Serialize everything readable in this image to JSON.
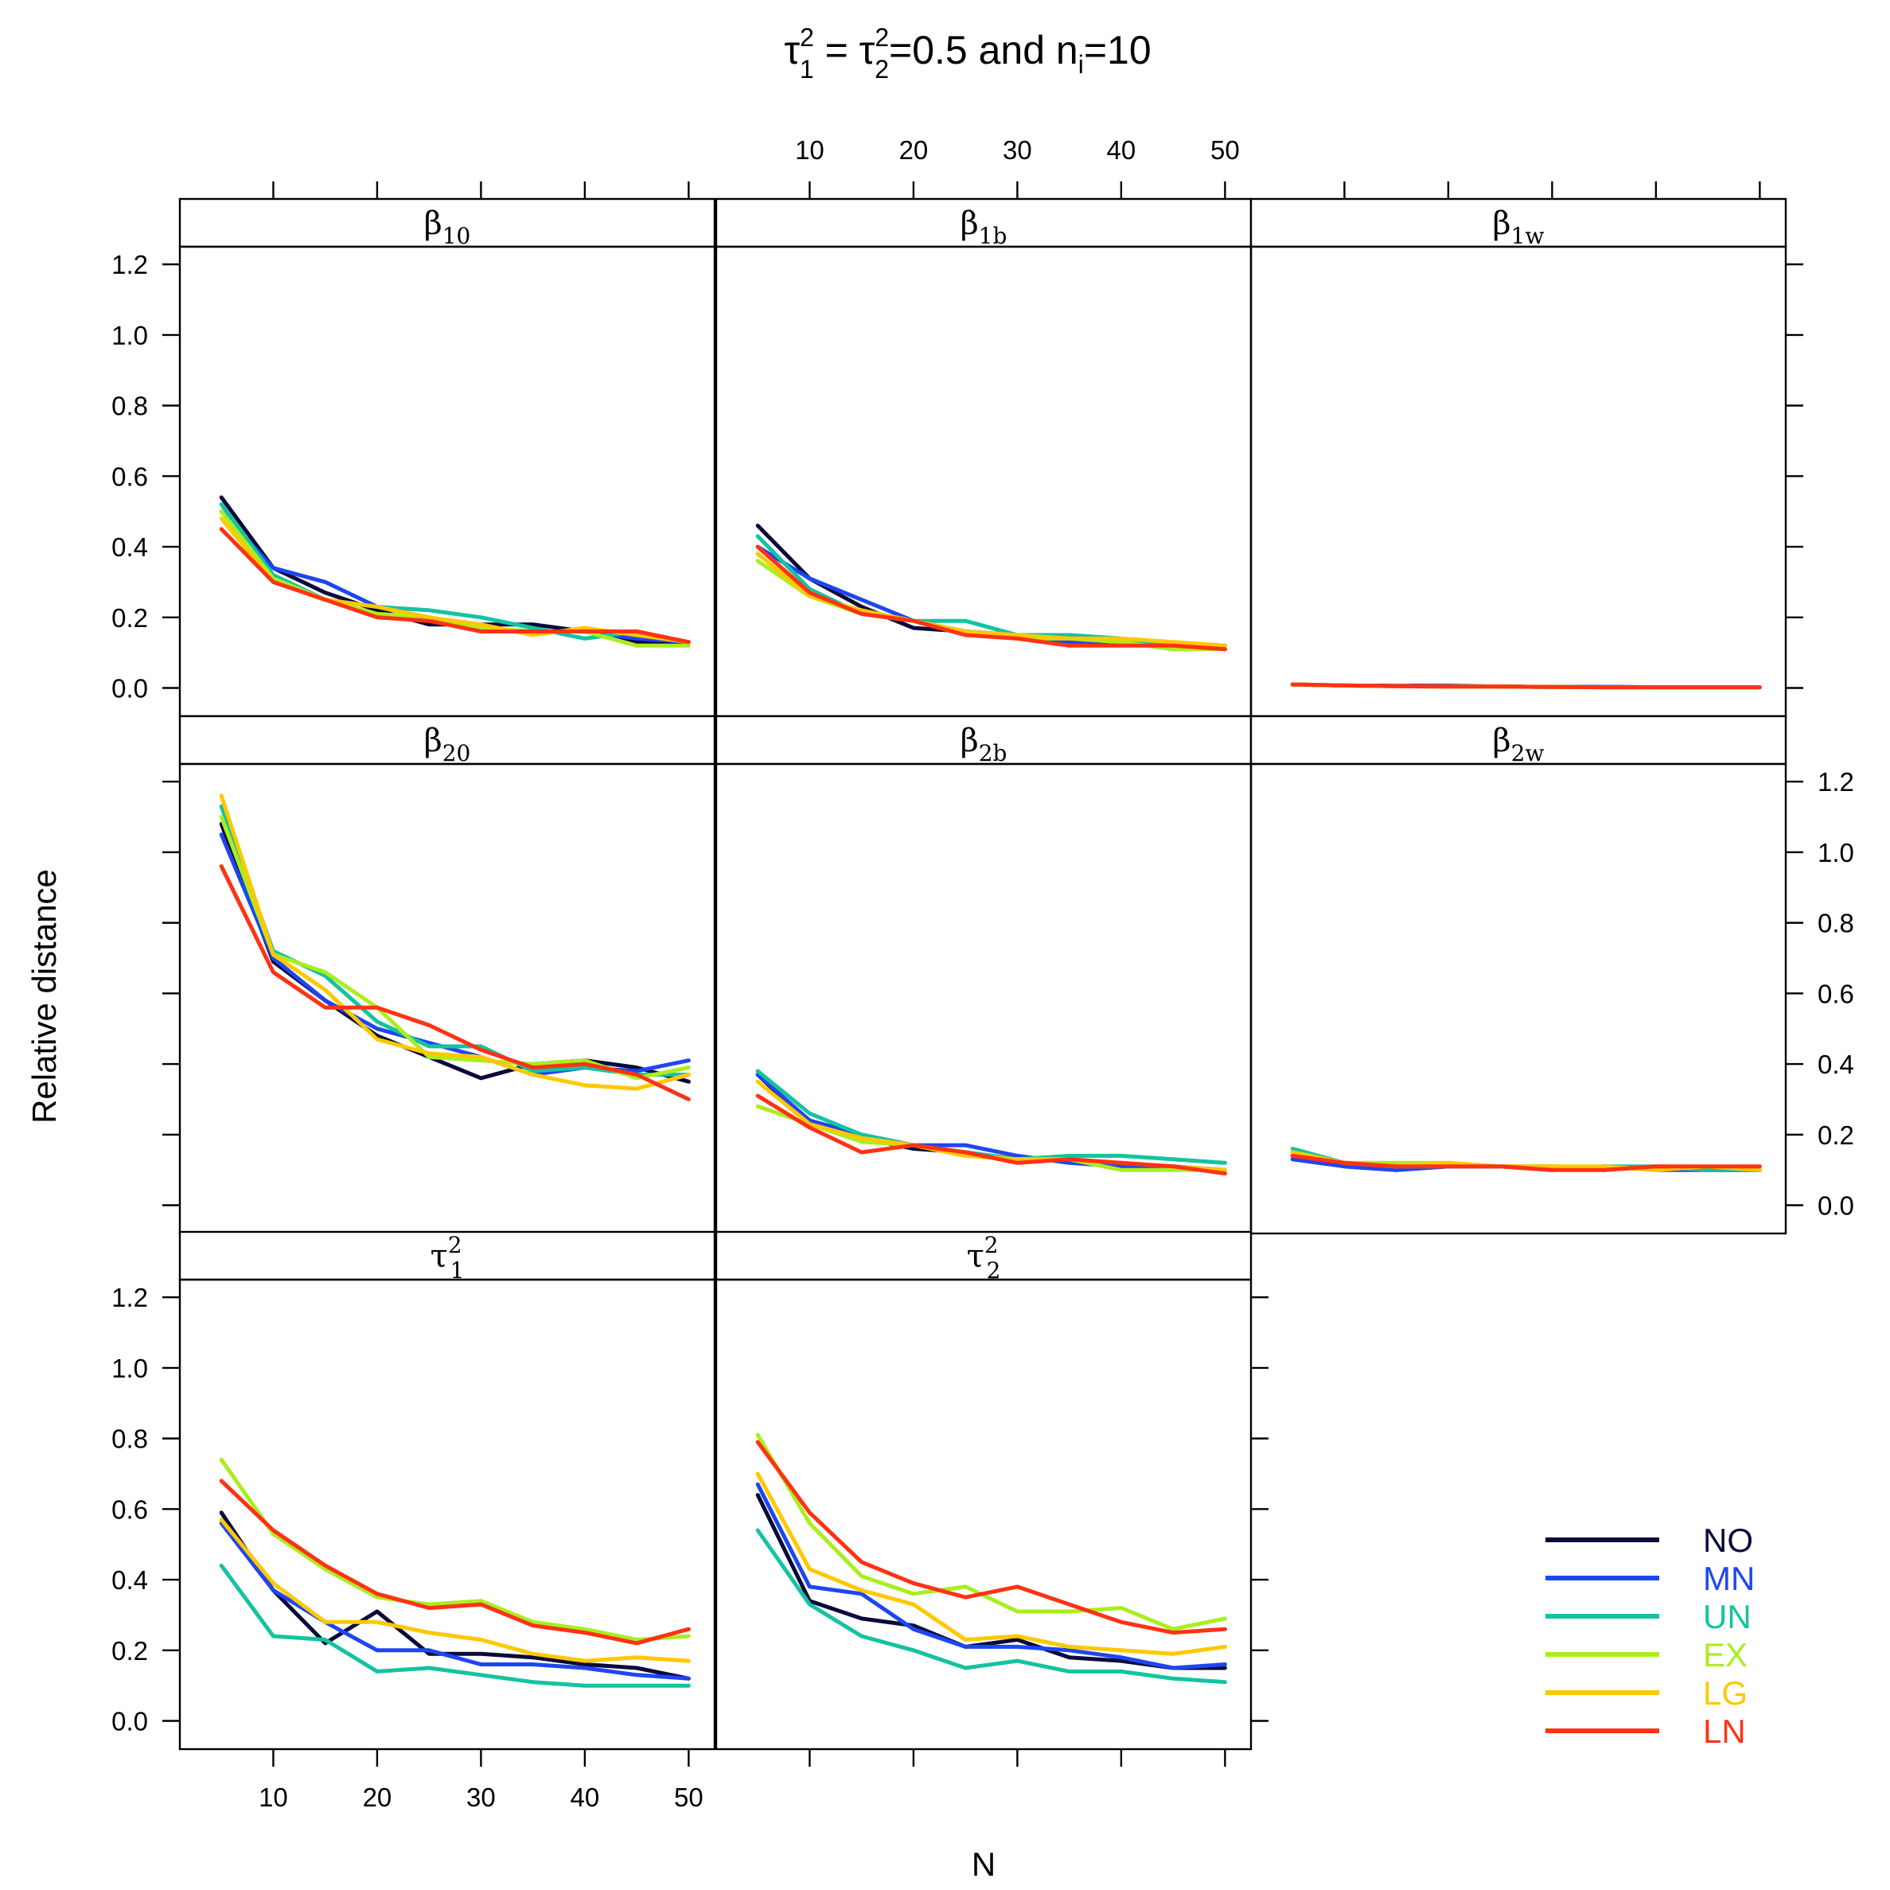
{
  "chart_data": {
    "type": "line",
    "title": {
      "tau1": "τ",
      "sup": "2",
      "sub1": "1",
      "eq": " = ",
      "tau2": "τ",
      "sub2": "2",
      "rest": "=0.5 and n",
      "subi": "i",
      "tail": "=10"
    },
    "xlabel": "N",
    "ylabel": "Relative distance",
    "x": [
      5,
      10,
      15,
      20,
      25,
      30,
      35,
      40,
      45,
      50
    ],
    "xticks": [
      "10",
      "20",
      "30",
      "40",
      "50"
    ],
    "yticks": [
      "0.0",
      "0.2",
      "0.4",
      "0.6",
      "0.8",
      "1.0",
      "1.2"
    ],
    "xlim": [
      1,
      52.5
    ],
    "ylim": [
      -0.08,
      1.25
    ],
    "series_names": [
      "NO",
      "MN",
      "UN",
      "EX",
      "LG",
      "LN"
    ],
    "colors": {
      "NO": "#0a0a3c",
      "MN": "#1e46f0",
      "UN": "#14c3a0",
      "EX": "#aaee1e",
      "LG": "#ffc800",
      "LN": "#ff3214"
    },
    "panels": [
      {
        "id": "b10",
        "greek": "β",
        "sub": "10",
        "sup": "",
        "series": {
          "NO": [
            0.54,
            0.34,
            0.27,
            0.22,
            0.18,
            0.18,
            0.18,
            0.16,
            0.13,
            0.13
          ],
          "MN": [
            0.5,
            0.34,
            0.3,
            0.23,
            0.2,
            0.17,
            0.16,
            0.16,
            0.14,
            0.13
          ],
          "UN": [
            0.52,
            0.32,
            0.25,
            0.23,
            0.22,
            0.2,
            0.17,
            0.14,
            0.16,
            0.13
          ],
          "EX": [
            0.5,
            0.31,
            0.25,
            0.21,
            0.2,
            0.17,
            0.16,
            0.16,
            0.12,
            0.12
          ],
          "LG": [
            0.48,
            0.3,
            0.25,
            0.23,
            0.2,
            0.18,
            0.15,
            0.17,
            0.15,
            0.13
          ],
          "LN": [
            0.45,
            0.3,
            0.25,
            0.2,
            0.19,
            0.16,
            0.16,
            0.16,
            0.16,
            0.13
          ]
        }
      },
      {
        "id": "b1b",
        "greek": "β",
        "sub": "1b",
        "sup": "",
        "series": {
          "NO": [
            0.46,
            0.31,
            0.23,
            0.17,
            0.16,
            0.15,
            0.15,
            0.13,
            0.11,
            0.12
          ],
          "MN": [
            0.4,
            0.31,
            0.25,
            0.19,
            0.16,
            0.15,
            0.13,
            0.13,
            0.12,
            0.11
          ],
          "UN": [
            0.43,
            0.28,
            0.21,
            0.19,
            0.19,
            0.15,
            0.15,
            0.14,
            0.12,
            0.12
          ],
          "EX": [
            0.36,
            0.26,
            0.21,
            0.19,
            0.15,
            0.14,
            0.14,
            0.13,
            0.11,
            0.11
          ],
          "LG": [
            0.38,
            0.26,
            0.22,
            0.19,
            0.16,
            0.15,
            0.14,
            0.14,
            0.13,
            0.12
          ],
          "LN": [
            0.4,
            0.27,
            0.21,
            0.19,
            0.15,
            0.14,
            0.12,
            0.12,
            0.12,
            0.11
          ]
        }
      },
      {
        "id": "b1w",
        "greek": "β",
        "sub": "1w",
        "sup": "",
        "series": {
          "NO": [
            0.01,
            0.007,
            0.006,
            0.006,
            0.004,
            0.003,
            0.003,
            0.002,
            0.002,
            0.002
          ],
          "MN": [
            0.01,
            0.007,
            0.005,
            0.005,
            0.004,
            0.003,
            0.003,
            0.002,
            0.002,
            0.002
          ],
          "UN": [
            0.01,
            0.007,
            0.005,
            0.004,
            0.004,
            0.003,
            0.002,
            0.002,
            0.002,
            0.002
          ],
          "EX": [
            0.01,
            0.007,
            0.005,
            0.004,
            0.004,
            0.003,
            0.002,
            0.002,
            0.002,
            0.002
          ],
          "LG": [
            0.01,
            0.007,
            0.005,
            0.004,
            0.004,
            0.003,
            0.002,
            0.002,
            0.002,
            0.002
          ],
          "LN": [
            0.01,
            0.007,
            0.005,
            0.004,
            0.004,
            0.003,
            0.002,
            0.002,
            0.002,
            0.002
          ]
        }
      },
      {
        "id": "b20",
        "greek": "β",
        "sub": "20",
        "sup": "",
        "series": {
          "NO": [
            1.08,
            0.69,
            0.58,
            0.48,
            0.42,
            0.36,
            0.4,
            0.41,
            0.39,
            0.35
          ],
          "MN": [
            1.05,
            0.7,
            0.58,
            0.5,
            0.46,
            0.42,
            0.37,
            0.39,
            0.38,
            0.41
          ],
          "UN": [
            1.13,
            0.72,
            0.65,
            0.52,
            0.45,
            0.45,
            0.38,
            0.39,
            0.37,
            0.37
          ],
          "EX": [
            1.1,
            0.71,
            0.66,
            0.56,
            0.42,
            0.41,
            0.4,
            0.41,
            0.36,
            0.39
          ],
          "LG": [
            1.16,
            0.71,
            0.61,
            0.47,
            0.43,
            0.42,
            0.37,
            0.34,
            0.33,
            0.37
          ],
          "LN": [
            0.96,
            0.66,
            0.56,
            0.56,
            0.51,
            0.44,
            0.39,
            0.4,
            0.37,
            0.3
          ]
        }
      },
      {
        "id": "b2b",
        "greek": "β",
        "sub": "2b",
        "sup": "",
        "series": {
          "NO": [
            0.37,
            0.23,
            0.19,
            0.16,
            0.15,
            0.13,
            0.13,
            0.11,
            0.11,
            0.1
          ],
          "MN": [
            0.37,
            0.24,
            0.2,
            0.17,
            0.17,
            0.14,
            0.12,
            0.11,
            0.11,
            0.1
          ],
          "UN": [
            0.38,
            0.26,
            0.2,
            0.17,
            0.15,
            0.13,
            0.14,
            0.14,
            0.13,
            0.12
          ],
          "EX": [
            0.28,
            0.23,
            0.18,
            0.17,
            0.14,
            0.13,
            0.13,
            0.1,
            0.1,
            0.1
          ],
          "LG": [
            0.35,
            0.23,
            0.19,
            0.17,
            0.14,
            0.13,
            0.13,
            0.12,
            0.11,
            0.1
          ],
          "LN": [
            0.31,
            0.22,
            0.15,
            0.17,
            0.15,
            0.12,
            0.13,
            0.12,
            0.11,
            0.09
          ]
        }
      },
      {
        "id": "b2w",
        "greek": "β",
        "sub": "2w",
        "sup": "",
        "series": {
          "NO": [
            0.14,
            0.11,
            0.1,
            0.11,
            0.11,
            0.11,
            0.1,
            0.11,
            0.1,
            0.1
          ],
          "MN": [
            0.13,
            0.11,
            0.1,
            0.11,
            0.11,
            0.1,
            0.11,
            0.1,
            0.1,
            0.1
          ],
          "UN": [
            0.16,
            0.12,
            0.11,
            0.11,
            0.11,
            0.1,
            0.11,
            0.11,
            0.1,
            0.1
          ],
          "EX": [
            0.15,
            0.12,
            0.12,
            0.12,
            0.11,
            0.11,
            0.1,
            0.11,
            0.11,
            0.1
          ],
          "LG": [
            0.15,
            0.12,
            0.11,
            0.12,
            0.11,
            0.11,
            0.11,
            0.1,
            0.11,
            0.1
          ],
          "LN": [
            0.14,
            0.12,
            0.11,
            0.11,
            0.11,
            0.1,
            0.1,
            0.11,
            0.11,
            0.11
          ]
        }
      },
      {
        "id": "t1",
        "greek": "τ",
        "sub": "1",
        "sup": "2",
        "series": {
          "NO": [
            0.59,
            0.37,
            0.22,
            0.31,
            0.19,
            0.19,
            0.18,
            0.16,
            0.15,
            0.12
          ],
          "MN": [
            0.56,
            0.37,
            0.28,
            0.2,
            0.2,
            0.16,
            0.16,
            0.15,
            0.13,
            0.12
          ],
          "UN": [
            0.44,
            0.24,
            0.23,
            0.14,
            0.15,
            0.13,
            0.11,
            0.1,
            0.1,
            0.1
          ],
          "EX": [
            0.74,
            0.53,
            0.43,
            0.35,
            0.33,
            0.34,
            0.28,
            0.26,
            0.23,
            0.24
          ],
          "LG": [
            0.57,
            0.39,
            0.28,
            0.28,
            0.25,
            0.23,
            0.19,
            0.17,
            0.18,
            0.17
          ],
          "LN": [
            0.68,
            0.54,
            0.44,
            0.36,
            0.32,
            0.33,
            0.27,
            0.25,
            0.22,
            0.26
          ]
        }
      },
      {
        "id": "t2",
        "greek": "τ",
        "sub": "2",
        "sup": "2",
        "series": {
          "NO": [
            0.64,
            0.34,
            0.29,
            0.27,
            0.21,
            0.23,
            0.18,
            0.17,
            0.15,
            0.15
          ],
          "MN": [
            0.67,
            0.38,
            0.36,
            0.26,
            0.21,
            0.21,
            0.2,
            0.18,
            0.15,
            0.16
          ],
          "UN": [
            0.54,
            0.33,
            0.24,
            0.2,
            0.15,
            0.17,
            0.14,
            0.14,
            0.12,
            0.11
          ],
          "EX": [
            0.81,
            0.56,
            0.41,
            0.36,
            0.38,
            0.31,
            0.31,
            0.32,
            0.26,
            0.29
          ],
          "LG": [
            0.7,
            0.43,
            0.37,
            0.33,
            0.23,
            0.24,
            0.21,
            0.2,
            0.19,
            0.21
          ],
          "LN": [
            0.79,
            0.59,
            0.45,
            0.39,
            0.35,
            0.38,
            0.33,
            0.28,
            0.25,
            0.26
          ]
        }
      }
    ]
  }
}
